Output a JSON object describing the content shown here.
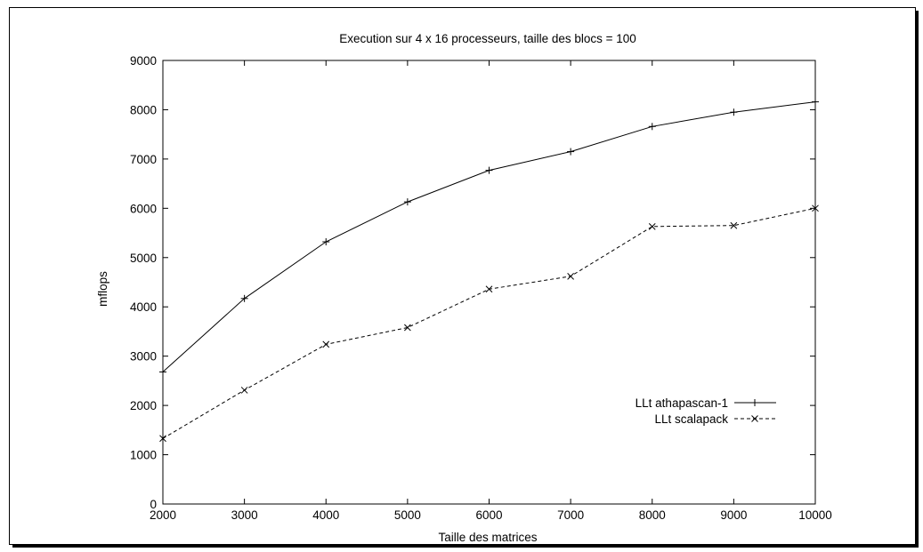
{
  "chart_data": {
    "type": "line",
    "title": "Execution  sur 4 x 16 processeurs, taille des blocs = 100",
    "xlabel": "Taille des matrices",
    "ylabel": "mflops",
    "x": [
      2000,
      3000,
      4000,
      5000,
      6000,
      7000,
      8000,
      9000,
      10000
    ],
    "xlim": [
      2000,
      10000
    ],
    "ylim": [
      0,
      9000
    ],
    "xticks": [
      2000,
      3000,
      4000,
      5000,
      6000,
      7000,
      8000,
      9000,
      10000
    ],
    "yticks": [
      0,
      1000,
      2000,
      3000,
      4000,
      5000,
      6000,
      7000,
      8000,
      9000
    ],
    "grid": false,
    "legend_position": "right",
    "series": [
      {
        "name": "LLt athapascan-1",
        "marker": "plus",
        "dash": "solid",
        "values": [
          2680,
          4170,
          5320,
          6130,
          6770,
          7150,
          7660,
          7950,
          8160
        ]
      },
      {
        "name": "LLt scalapack",
        "marker": "cross",
        "dash": "dashed",
        "values": [
          1330,
          2310,
          3240,
          3580,
          4360,
          4620,
          5630,
          5650,
          6000
        ]
      }
    ]
  }
}
